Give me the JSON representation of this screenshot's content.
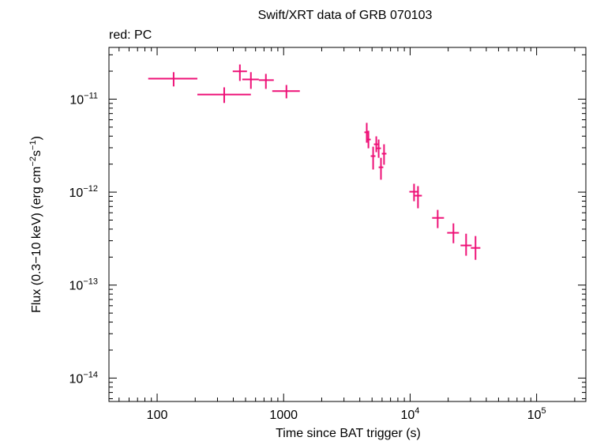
{
  "chart_data": {
    "type": "scatter",
    "title": "Swift/XRT data of GRB 070103",
    "subtitle": "red: PC",
    "xlabel": "Time since BAT trigger (s)",
    "ylabel": [
      "Flux (0.3−10 keV) (erg cm",
      "−2",
      "s",
      "−1",
      ")"
    ],
    "log_x": true,
    "log_y": true,
    "xlim": [
      41.6,
      245000
    ],
    "ylim": [
      5.6e-15,
      3.6e-11
    ],
    "xticks": [
      100,
      1000,
      {
        "value": 10000,
        "label": "10",
        "exponent": "4"
      },
      {
        "value": 100000,
        "label": "10",
        "exponent": "5"
      }
    ],
    "yticks": [
      {
        "value": 1e-14,
        "label": "10",
        "exponent": "−14"
      },
      {
        "value": 1e-13,
        "label": "10",
        "exponent": "−13"
      },
      {
        "value": 1e-12,
        "label": "10",
        "exponent": "−12"
      },
      {
        "value": 1e-11,
        "label": "10",
        "exponent": "−11"
      }
    ],
    "series": [
      {
        "color": "#ee1177",
        "x": [
          135,
          339,
          451,
          551,
          724,
          1052,
          4540,
          4680,
          5100,
          5400,
          5640,
          5880,
          6220,
          10740,
          11540,
          16520,
          22000,
          27700,
          32890
        ],
        "x_low": [
          85,
          208,
          396,
          471,
          637,
          813,
          4350,
          4540,
          4880,
          5170,
          5400,
          5640,
          5970,
          9860,
          10900,
          14930,
          19630,
          25040,
          30200
        ],
        "x_high": [
          208,
          551,
          513,
          637,
          836,
          1343,
          4740,
          4880,
          5320,
          5640,
          5880,
          6140,
          6500,
          11720,
          12390,
          18530,
          24330,
          30620,
          35900
        ],
        "values": [
          1.66e-11,
          1.12e-11,
          1.99e-11,
          1.63e-11,
          1.6e-11,
          1.22e-11,
          4.4e-12,
          3.68e-12,
          2.44e-12,
          3.27e-12,
          2.96e-12,
          1.85e-12,
          2.59e-12,
          1.01e-12,
          9.16e-13,
          5.28e-13,
          3.65e-13,
          2.67e-13,
          2.51e-13
        ],
        "y_low": [
          1.37e-11,
          9.1e-12,
          1.57e-11,
          1.29e-11,
          1.29e-11,
          1.02e-11,
          3.4e-12,
          2.96e-12,
          1.75e-12,
          2.69e-12,
          2.34e-12,
          1.36e-12,
          1.97e-12,
          7.98e-13,
          6.7e-13,
          4.1e-13,
          2.82e-13,
          2.07e-13,
          1.87e-13
        ],
        "y_high": [
          1.95e-11,
          1.34e-11,
          2.36e-11,
          1.95e-11,
          1.87e-11,
          1.42e-11,
          5.56e-12,
          4.57e-12,
          3.08e-12,
          3.98e-12,
          3.68e-12,
          2.34e-12,
          3.27e-12,
          1.23e-12,
          1.16e-12,
          6.44e-13,
          4.61e-13,
          3.57e-13,
          3.37e-13
        ]
      }
    ]
  }
}
